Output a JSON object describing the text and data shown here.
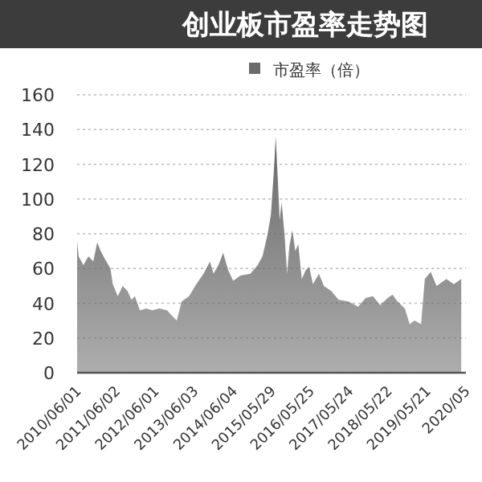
{
  "chart_data": {
    "type": "area",
    "title": "创业板市盈率走势图",
    "legend": "top",
    "grid": "y",
    "ylim": [
      0,
      160
    ],
    "yticks": [
      0,
      20,
      40,
      60,
      80,
      100,
      120,
      140,
      160
    ],
    "xlim": [
      "2010-06-01",
      "2020-05-20"
    ],
    "xticks": [
      {
        "value": "2010-06-01",
        "label": "2010/06/01"
      },
      {
        "value": "2011-06-02",
        "label": "2011/06/02"
      },
      {
        "value": "2012-06-01",
        "label": "2012/06/01"
      },
      {
        "value": "2013-06-03",
        "label": "2013/06/03"
      },
      {
        "value": "2014-06-04",
        "label": "2014/06/04"
      },
      {
        "value": "2015-05-29",
        "label": "2015/05/29"
      },
      {
        "value": "2016-05-25",
        "label": "2016/05/25"
      },
      {
        "value": "2017-05-24",
        "label": "2017/05/24"
      },
      {
        "value": "2018-05-22",
        "label": "2018/05/22"
      },
      {
        "value": "2019-05-21",
        "label": "2019/05/21"
      },
      {
        "value": "2020-05-20",
        "label": "2020/05"
      }
    ],
    "series": [
      {
        "name": "市盈率（倍）",
        "color": "#6a6a6a",
        "x": [
          "2010-06-01",
          "2010-06-15",
          "2010-07-30",
          "2010-09-15",
          "2010-10-30",
          "2010-12-06",
          "2011-01-07",
          "2011-02-21",
          "2011-04-09",
          "2011-05-01",
          "2011-06-17",
          "2011-08-01",
          "2011-09-16",
          "2011-10-23",
          "2011-11-24",
          "2012-01-10",
          "2012-03-09",
          "2012-05-04",
          "2012-07-12",
          "2012-09-19",
          "2012-11-03",
          "2012-12-20",
          "2013-02-04",
          "2013-04-14",
          "2013-06-21",
          "2013-08-28",
          "2013-10-27",
          "2013-11-29",
          "2014-01-14",
          "2014-02-28",
          "2014-04-16",
          "2014-06-01",
          "2014-08-09",
          "2014-11-09",
          "2015-01-17",
          "2015-03-03",
          "2015-04-17",
          "2015-05-21",
          "2015-06-17",
          "2015-07-05",
          "2015-07-23",
          "2015-08-11",
          "2015-08-29",
          "2015-09-26",
          "2015-10-19",
          "2015-11-10",
          "2015-12-08",
          "2016-01-04",
          "2016-02-01",
          "2016-03-05",
          "2016-04-10",
          "2016-05-13",
          "2016-06-18",
          "2016-08-12",
          "2016-09-28",
          "2016-12-06",
          "2017-02-13",
          "2017-05-15",
          "2017-08-15",
          "2017-10-23",
          "2017-12-31",
          "2018-03-09",
          "2018-05-18",
          "2018-07-02",
          "2018-08-18",
          "2018-10-26",
          "2018-12-10",
          "2019-01-25",
          "2019-03-27",
          "2019-05-01",
          "2019-06-25",
          "2019-08-19",
          "2019-11-20",
          "2020-01-27",
          "2020-04-06"
        ],
        "values": [
          76,
          67,
          62,
          67,
          64,
          75,
          70,
          65,
          60,
          51,
          44,
          50,
          47,
          42,
          44,
          36,
          37,
          36,
          37,
          36,
          33,
          30,
          41,
          44,
          51,
          57,
          64,
          57,
          62,
          69,
          59,
          53,
          56,
          57,
          62,
          67,
          79,
          91,
          116,
          136,
          113,
          88,
          98,
          79,
          57,
          73,
          82,
          70,
          74,
          54,
          59,
          61,
          51,
          57,
          50,
          47,
          42,
          41,
          38,
          43,
          44,
          39,
          43,
          45,
          41,
          37,
          28,
          30,
          28,
          54,
          58,
          50,
          54,
          51,
          54
        ]
      }
    ]
  }
}
